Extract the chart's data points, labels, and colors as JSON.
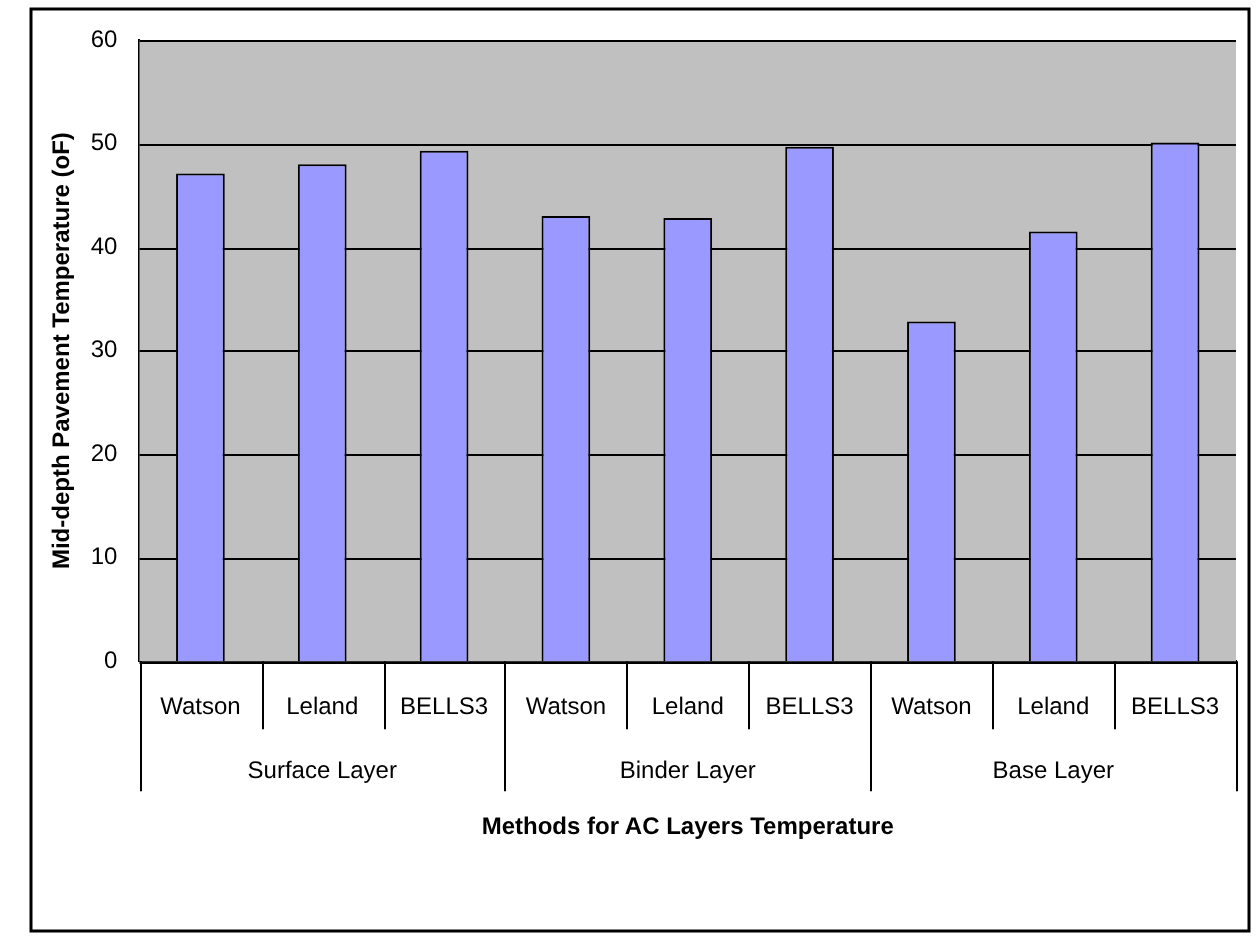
{
  "chart_data": {
    "type": "bar",
    "xlabel": "Methods for AC Layers Temperature",
    "ylabel": "Mid-depth Pavement Temperature (oF)",
    "categories": [
      "Watson",
      "Leland",
      "BELLS3",
      "Watson",
      "Leland",
      "BELLS3",
      "Watson",
      "Leland",
      "BELLS3"
    ],
    "values": [
      47.1,
      48.0,
      49.3,
      43.0,
      42.8,
      49.7,
      32.8,
      41.5,
      50.1
    ],
    "color": "#9999ff",
    "ylim": [
      0,
      60
    ],
    "yticks": [
      0,
      10,
      20,
      30,
      40,
      50,
      60
    ],
    "grid": "y",
    "legend": false,
    "annotations": [
      "Surface Layer",
      "Binder Layer",
      "Base Layer"
    ]
  }
}
